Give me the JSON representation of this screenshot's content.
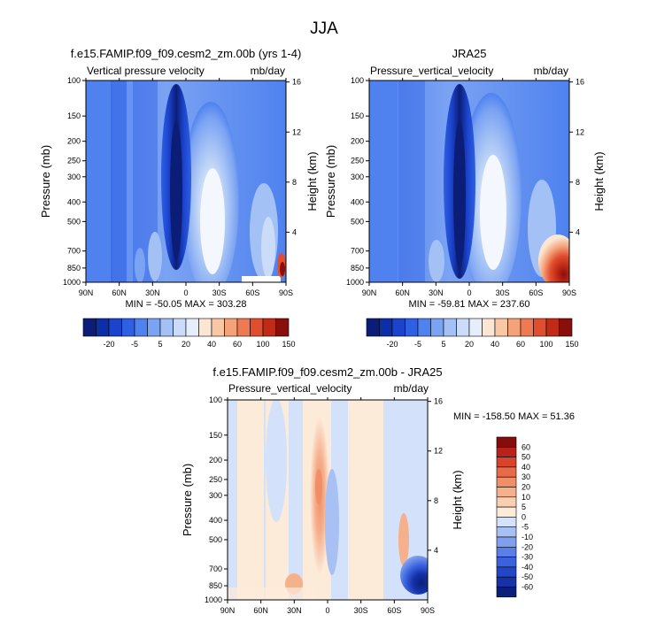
{
  "page_title": "JJA",
  "chart_data": [
    {
      "type": "heatmap",
      "title": "f.e15.FAMIP.f09_f09.cesm2_zm.00b (yrs 1-4)",
      "left_label": "Vertical pressure velocity",
      "right_label": "mb/day",
      "xlabel": "",
      "ylabel": "Pressure (mb)",
      "y2label": "Height (km)",
      "x_ticks": [
        "90N",
        "60N",
        "30N",
        "0",
        "30S",
        "60S",
        "90S"
      ],
      "y_ticks": [
        "100",
        "150",
        "200",
        "250",
        "300",
        "400",
        "500",
        "700",
        "850",
        "1000"
      ],
      "y2_ticks": [
        "16",
        "12",
        "8",
        "4"
      ],
      "xlim": [
        90,
        -90
      ],
      "ylim": [
        1000,
        100
      ],
      "stats": "MIN = -50.05  MAX = 303.28",
      "colorbar_labels": [
        "-20",
        "-5",
        "5",
        "20",
        "40",
        "60",
        "100",
        "150"
      ]
    },
    {
      "type": "heatmap",
      "title": "JRA25",
      "left_label": "Pressure_vertical_velocity",
      "right_label": "mb/day",
      "xlabel": "",
      "ylabel": "Pressure (mb)",
      "y2label": "Height (km)",
      "x_ticks": [
        "90N",
        "60N",
        "30N",
        "0",
        "30S",
        "60S",
        "90S"
      ],
      "y_ticks": [
        "100",
        "150",
        "200",
        "250",
        "300",
        "400",
        "500",
        "700",
        "850",
        "1000"
      ],
      "y2_ticks": [
        "16",
        "12",
        "8",
        "4"
      ],
      "xlim": [
        90,
        -90
      ],
      "ylim": [
        1000,
        100
      ],
      "stats": "MIN = -59.81  MAX = 237.60",
      "colorbar_labels": [
        "-20",
        "-5",
        "5",
        "20",
        "40",
        "60",
        "100",
        "150"
      ]
    },
    {
      "type": "heatmap",
      "title": "f.e15.FAMIP.f09_f09.cesm2_zm.00b - JRA25",
      "left_label": "Pressure_vertical_velocity",
      "right_label": "mb/day",
      "xlabel": "",
      "ylabel": "Pressure (mb)",
      "y2label": "Height (km)",
      "x_ticks": [
        "90N",
        "60N",
        "30N",
        "0",
        "30S",
        "60S",
        "90S"
      ],
      "y_ticks": [
        "100",
        "150",
        "200",
        "250",
        "300",
        "400",
        "500",
        "700",
        "850",
        "1000"
      ],
      "y2_ticks": [
        "16",
        "12",
        "8",
        "4"
      ],
      "xlim": [
        90,
        -90
      ],
      "ylim": [
        1000,
        100
      ],
      "stats": "MIN = -158.50  MAX = 51.36",
      "colorbar_labels": [
        "60",
        "50",
        "40",
        "30",
        "20",
        "10",
        "5",
        "0",
        "-5",
        "-10",
        "-20",
        "-30",
        "-40",
        "-50",
        "-60"
      ]
    }
  ],
  "colors": {
    "abs_scale": [
      "#0c1d78",
      "#0a2fa6",
      "#1b44cc",
      "#2f60e4",
      "#4f82ef",
      "#7ba3f3",
      "#a3c1f5",
      "#cbdcf8",
      "#e6eefb",
      "#fbe6d4",
      "#f8c7a3",
      "#f4a27a",
      "#ed7a53",
      "#e14e2f",
      "#c02a17",
      "#8a0e0b"
    ],
    "diff_scale": [
      "#0a1f7a",
      "#1632a8",
      "#2146c8",
      "#3a62df",
      "#5a80e8",
      "#80a0ee",
      "#a8c0f3",
      "#d3e2fa",
      "#fdebda",
      "#f8cfb1",
      "#f5b08c",
      "#f08e68",
      "#e86a48",
      "#d8432b",
      "#b8221a",
      "#870d0d"
    ]
  }
}
